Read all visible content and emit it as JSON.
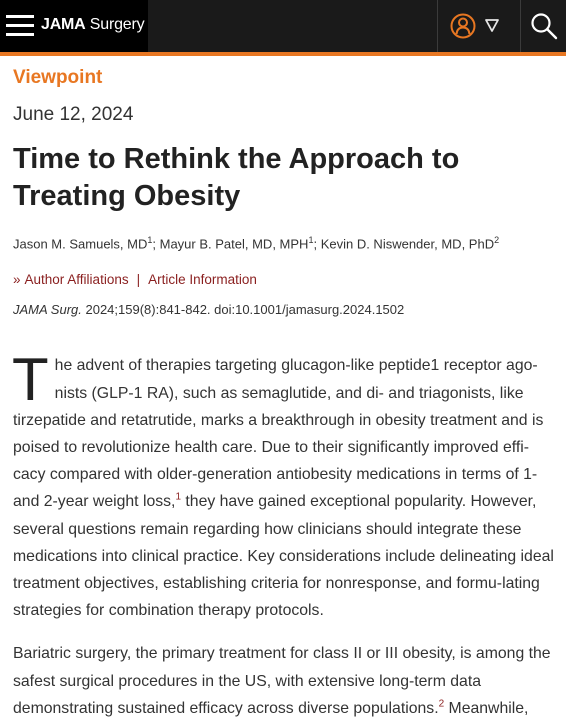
{
  "header": {
    "logo_bold": "JAMA",
    "logo_light": " Surgery",
    "icons": {
      "menu": "hamburger-menu-icon",
      "user": "user-icon",
      "dropdown": "caret-down-icon",
      "search": "search-icon"
    },
    "colors": {
      "topbar": "#1a1a1a",
      "accent": "#e87722",
      "link": "#8a1f1f"
    }
  },
  "article": {
    "section": "Viewpoint",
    "date": "June 12, 2024",
    "title": "Time to Rethink the Approach to Treating Obesity",
    "authors": [
      {
        "name": "Jason M. Samuels, MD",
        "sup": "1",
        "sep": "; "
      },
      {
        "name": "Mayur B. Patel, MD, MPH",
        "sup": "1",
        "sep": "; "
      },
      {
        "name": "Kevin D. Niswender, MD, PhD",
        "sup": "2",
        "sep": ""
      }
    ],
    "links": {
      "affiliations": "Author Affiliations",
      "separator": "|",
      "info": "Article Information"
    },
    "citation": {
      "journal": "JAMA Surg.",
      "rest": " 2024;159(8):841-842. doi:10.1001/jamasurg.2024.1502"
    },
    "paragraph1": {
      "dropcap": "T",
      "text_a": "he advent of therapies targeting glucagon-like peptide1 receptor ago-nists (GLP-1 RA), such as semaglutide, and di- and triagonists, like tirzepatide and retatrutide, marks a breakthrough in obesity treatment and is poised to revolutionize health care. Due to their significantly improved effi-cacy compared with older-generation antiobesity medications in terms of 1- and 2-year weight loss,",
      "ref": "1",
      "text_b": " they have gained exceptional popularity. However, several questions remain regarding how clinicians should integrate these medications into clinical practice. Key considerations include delineating ideal treatment objectives, establishing criteria for nonresponse, and formu-lating strategies for combination therapy protocols."
    },
    "paragraph2": {
      "text_a": "Bariatric surgery, the primary treatment for class II or III obesity, is among the safest surgical procedures in the US, with extensive long-term data demonstrating sustained efficacy across diverse populations.",
      "ref": "2",
      "text_b": " Meanwhile,"
    }
  }
}
